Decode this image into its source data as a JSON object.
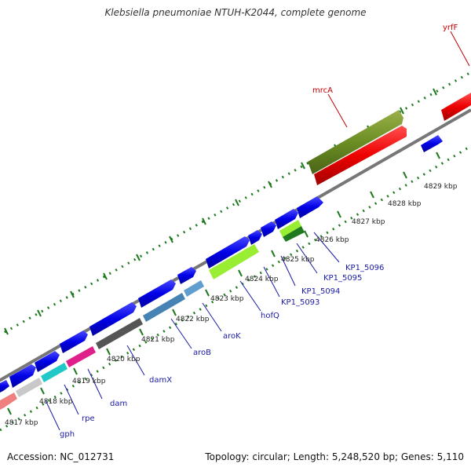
{
  "title": "Klebsiella pneumoniae NTUH-K2044, complete genome",
  "footer": {
    "accession": "Accession: NC_012731",
    "summary": "Topology: circular; Length: 5,248,520 bp; Genes: 5,110"
  },
  "scale_labels": [
    "4817 kbp",
    "4818 kbp",
    "4819 kbp",
    "4820 kbp",
    "4821 kbp",
    "4822 kbp",
    "4823 kbp",
    "4824 kbp",
    "4825 kbp",
    "4826 kbp",
    "4827 kbp",
    "4828 kbp",
    "4829 kbp"
  ],
  "genes": [
    {
      "name": "gph",
      "color": "#1a1aa6"
    },
    {
      "name": "rpe",
      "color": "#1a1aa6"
    },
    {
      "name": "dam",
      "color": "#1a1aa6"
    },
    {
      "name": "damX",
      "color": "#1a1aa6"
    },
    {
      "name": "aroB",
      "color": "#1a1aa6"
    },
    {
      "name": "aroK",
      "color": "#1a1aa6"
    },
    {
      "name": "hofQ",
      "color": "#1a1aa6"
    },
    {
      "name": "KP1_5093",
      "color": "#1a1aa6"
    },
    {
      "name": "KP1_5094",
      "color": "#1a1aa6"
    },
    {
      "name": "KP1_5095",
      "color": "#1a1aa6"
    },
    {
      "name": "KP1_5096",
      "color": "#1a1aa6"
    },
    {
      "name": "mrcA",
      "color": "#c00000"
    },
    {
      "name": "yrfF",
      "color": "#c00000"
    }
  ],
  "colors": {
    "backbone": "#8c8c8c",
    "tick_green": "#1f7a1f",
    "forward_cds": "#0000ee",
    "reverse_cds": "#ee0000"
  }
}
